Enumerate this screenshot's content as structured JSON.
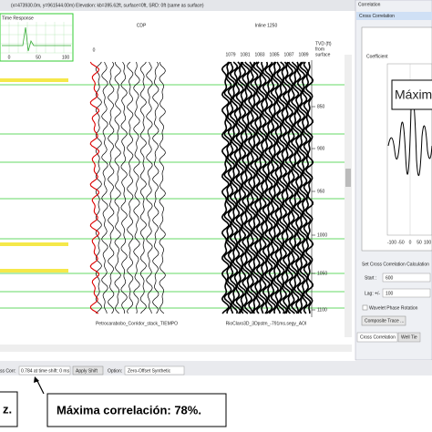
{
  "header": {
    "coords": "(x=473930.0m, y=961544.00m) Elevation: kb=395.62ft, surface=0ft, SRD: 0ft (same as surface)"
  },
  "time_response": {
    "title": "Time Response",
    "ticks": [
      "0",
      "50",
      "100"
    ]
  },
  "seismic": {
    "cdp_label": "CDP",
    "inline_label": "Inline 1250",
    "left_trace_zero": "0",
    "trace_numbers": [
      "1079",
      "1081",
      "1083",
      "1085",
      "1087",
      "1089"
    ],
    "depth_axis_title": [
      "TVD (ft)",
      "from",
      "surface"
    ],
    "depth_ticks": [
      "850",
      "900",
      "950",
      "1000",
      "1050",
      "1100"
    ],
    "left_section": "Petrocarabobo_Corridor_stack_TIEMPO",
    "right_section": "RioClaro3D_3Dpstm_-791ms.segy_AOI"
  },
  "correlation_panel": {
    "title": "Correlation",
    "subtitle": "Cross Correlation",
    "y_label": "Coefficient",
    "overlay": "Máxim",
    "x_ticks": [
      "-100",
      "-50",
      "0",
      "50",
      "100"
    ],
    "settings_title": "Set Cross Correlation Calculation",
    "start_label": "Start :",
    "start_value": "600",
    "lag_label": "Lag: +/-",
    "lag_value": "100",
    "phase_rotation": "Wavelet Phase Rotation",
    "composite_button": "Composite Trace ...",
    "tabs": [
      "Cross Correlation",
      "Well Tie"
    ]
  },
  "status_bar": {
    "corr_text": "ss Corr:",
    "corr_value": "0.784 at time shift: 0 ms",
    "apply_button": "Apply Shift",
    "option_label": "Option:",
    "option_value": "Zero-Offset Synthetic"
  },
  "annotations": {
    "left": "z.",
    "main": "Máxima correlación: 78%."
  }
}
